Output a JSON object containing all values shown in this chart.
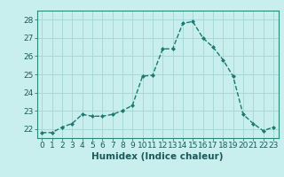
{
  "x": [
    0,
    1,
    2,
    3,
    4,
    5,
    6,
    7,
    8,
    9,
    10,
    11,
    12,
    13,
    14,
    15,
    16,
    17,
    18,
    19,
    20,
    21,
    22,
    23
  ],
  "y": [
    21.8,
    21.8,
    22.1,
    22.3,
    22.8,
    22.7,
    22.7,
    22.8,
    23.0,
    23.3,
    24.9,
    24.95,
    26.4,
    26.4,
    27.8,
    27.9,
    27.0,
    26.5,
    25.8,
    24.9,
    22.8,
    22.3,
    21.9,
    22.1
  ],
  "line_color": "#1a7a6e",
  "marker": "D",
  "marker_size": 2.0,
  "bg_color": "#c8eeee",
  "grid_color": "#a8d8d8",
  "xlabel": "Humidex (Indice chaleur)",
  "ylim": [
    21.5,
    28.5
  ],
  "xlim": [
    -0.5,
    23.5
  ],
  "yticks": [
    22,
    23,
    24,
    25,
    26,
    27,
    28
  ],
  "xticks": [
    0,
    1,
    2,
    3,
    4,
    5,
    6,
    7,
    8,
    9,
    10,
    11,
    12,
    13,
    14,
    15,
    16,
    17,
    18,
    19,
    20,
    21,
    22,
    23
  ],
  "xlabel_fontsize": 7.5,
  "tick_fontsize": 6.5,
  "line_width": 1.0
}
